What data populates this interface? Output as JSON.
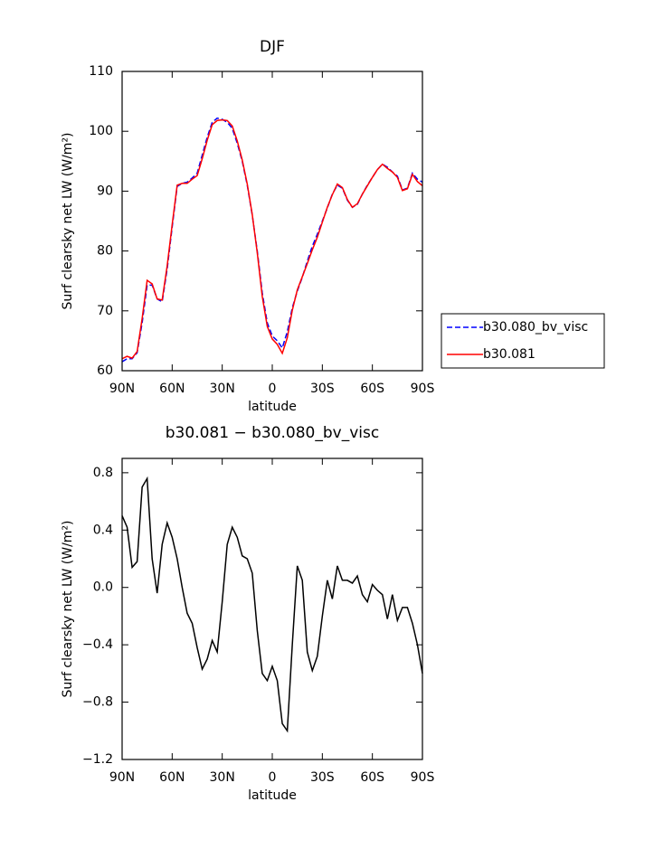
{
  "chart_data": [
    {
      "type": "line",
      "title": "DJF",
      "xlabel": "latitude",
      "ylabel": "Surf clearsky net LW (W/m²)",
      "x": [
        90,
        87,
        84,
        81,
        78,
        75,
        72,
        69,
        66,
        63,
        60,
        57,
        54,
        51,
        48,
        45,
        42,
        39,
        36,
        33,
        30,
        27,
        24,
        21,
        18,
        15,
        12,
        9,
        6,
        3,
        0,
        -3,
        -6,
        -9,
        -12,
        -15,
        -18,
        -21,
        -24,
        -27,
        -30,
        -33,
        -36,
        -39,
        -42,
        -45,
        -48,
        -51,
        -54,
        -57,
        -60,
        -63,
        -66,
        -69,
        -72,
        -75,
        -78,
        -81,
        -84,
        -87,
        -90
      ],
      "series": [
        {
          "name": "b30.080_bv_visc",
          "color": "#0000ff",
          "dash": true,
          "values": [
            61.5,
            62,
            62,
            63,
            68,
            74.3,
            74.3,
            72,
            71.5,
            77,
            84,
            90.8,
            91.3,
            91.5,
            92.2,
            93,
            96,
            99,
            101.5,
            102.2,
            102,
            101.5,
            100.5,
            98,
            95,
            91,
            86,
            80,
            73,
            68,
            65.8,
            65,
            63.8,
            66.5,
            70.5,
            73.3,
            75.6,
            78.3,
            80.8,
            82.8,
            85,
            87.2,
            89.5,
            91,
            90.5,
            88.5,
            87.3,
            87.8,
            89.5,
            91,
            92.3,
            93.6,
            94.5,
            94,
            93.2,
            92.5,
            90.2,
            90.5,
            93,
            92,
            91.5
          ]
        },
        {
          "name": "b30.081",
          "color": "#ff0000",
          "dash": false,
          "values": [
            62.0,
            62.4,
            62.1,
            63.2,
            68.7,
            75.1,
            74.5,
            72.0,
            71.8,
            77.5,
            84.4,
            91.0,
            91.3,
            91.3,
            92.0,
            92.6,
            95.4,
            98.5,
            101.1,
            101.8,
            101.9,
            101.8,
            100.9,
            98.4,
            95.2,
            91.2,
            86.1,
            79.7,
            72.4,
            67.4,
            65.3,
            64.4,
            62.9,
            65.5,
            70.1,
            73.5,
            75.7,
            77.9,
            80.2,
            82.3,
            84.8,
            87.3,
            89.4,
            91.2,
            90.6,
            88.6,
            87.3,
            87.9,
            89.5,
            90.9,
            92.3,
            93.6,
            94.5,
            93.8,
            93.2,
            92.3,
            90.1,
            90.4,
            92.8,
            91.6,
            90.9
          ]
        }
      ],
      "xlim": [
        90,
        -90
      ],
      "xticks": [
        {
          "value": 90,
          "label": "90N"
        },
        {
          "value": 60,
          "label": "60N"
        },
        {
          "value": 30,
          "label": "30N"
        },
        0,
        {
          "value": -30,
          "label": "30S"
        },
        {
          "value": -60,
          "label": "60S"
        },
        {
          "value": -90,
          "label": "90S"
        }
      ],
      "ylim": [
        60,
        110
      ],
      "yticks": [
        60,
        70,
        80,
        90,
        100,
        110
      ],
      "legend": "right"
    },
    {
      "type": "line",
      "title": "b30.081 − b30.080_bv_visc",
      "xlabel": "latitude",
      "ylabel": "Surf clearsky net LW (W/m²)",
      "x": [
        90,
        87,
        84,
        81,
        78,
        75,
        72,
        69,
        66,
        63,
        60,
        57,
        54,
        51,
        48,
        45,
        42,
        39,
        36,
        33,
        30,
        27,
        24,
        21,
        18,
        15,
        12,
        9,
        6,
        3,
        0,
        -3,
        -6,
        -9,
        -12,
        -15,
        -18,
        -21,
        -24,
        -27,
        -30,
        -33,
        -36,
        -39,
        -42,
        -45,
        -48,
        -51,
        -54,
        -57,
        -60,
        -63,
        -66,
        -69,
        -72,
        -75,
        -78,
        -81,
        -84,
        -87,
        -90
      ],
      "series": [
        {
          "color": "#000000",
          "dash": false,
          "values": [
            0.5,
            0.42,
            0.14,
            0.18,
            0.7,
            0.76,
            0.2,
            -0.04,
            0.3,
            0.45,
            0.35,
            0.2,
            0.0,
            -0.18,
            -0.25,
            -0.42,
            -0.57,
            -0.5,
            -0.37,
            -0.45,
            -0.1,
            0.3,
            0.42,
            0.35,
            0.22,
            0.2,
            0.1,
            -0.3,
            -0.6,
            -0.65,
            -0.55,
            -0.65,
            -0.95,
            -1.0,
            -0.4,
            0.15,
            0.05,
            -0.45,
            -0.58,
            -0.48,
            -0.2,
            0.05,
            -0.08,
            0.15,
            0.05,
            0.05,
            0.03,
            0.08,
            -0.05,
            -0.1,
            0.02,
            -0.02,
            -0.05,
            -0.22,
            -0.05,
            -0.23,
            -0.14,
            -0.14,
            -0.25,
            -0.4,
            -0.6
          ]
        }
      ],
      "xlim": [
        90,
        -90
      ],
      "xticks": [
        {
          "value": 90,
          "label": "90N"
        },
        {
          "value": 60,
          "label": "60N"
        },
        {
          "value": 30,
          "label": "30N"
        },
        0,
        {
          "value": -30,
          "label": "30S"
        },
        {
          "value": -60,
          "label": "60S"
        },
        {
          "value": -90,
          "label": "90S"
        }
      ],
      "ylim": [
        -1.2,
        0.9
      ],
      "yticks": [
        {
          "value": -1.2,
          "label": "−1.2"
        },
        {
          "value": -0.8,
          "label": "−0.8"
        },
        {
          "value": -0.4,
          "label": "−0.4"
        },
        {
          "value": 0,
          "label": "0.0"
        },
        0.4,
        0.8
      ]
    }
  ]
}
